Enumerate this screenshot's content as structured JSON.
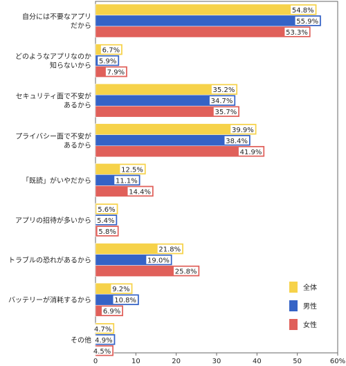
{
  "chart_data": {
    "type": "bar",
    "orientation": "horizontal",
    "categories": [
      [
        "自分には不要なアプリ",
        "だから"
      ],
      [
        "どのようなアプリなのか",
        "知らないから"
      ],
      [
        "セキュリティ面で不安が",
        "あるから"
      ],
      [
        "プライバシー面で不安が",
        "あるから"
      ],
      [
        "「既読」がいやだから"
      ],
      [
        "アプリの招待が多いから"
      ],
      [
        "トラブルの恐れがあるから"
      ],
      [
        "バッテリーが消耗するから"
      ],
      [
        "その他"
      ]
    ],
    "series": [
      {
        "name": "全体",
        "color": "#f6d24a",
        "values": [
          54.8,
          6.7,
          35.2,
          39.9,
          12.5,
          5.6,
          21.8,
          9.2,
          4.7
        ]
      },
      {
        "name": "男性",
        "color": "#3563c6",
        "values": [
          55.9,
          5.9,
          34.7,
          38.4,
          11.1,
          5.4,
          19.0,
          10.8,
          4.9
        ]
      },
      {
        "name": "女性",
        "color": "#e0605a",
        "values": [
          53.3,
          7.9,
          35.7,
          41.9,
          14.4,
          5.8,
          25.8,
          6.9,
          4.5
        ]
      }
    ],
    "value_labels": [
      [
        "54.8%",
        "6.7%",
        "35.2%",
        "39.9%",
        "12.5%",
        "5.6%",
        "21.8%",
        "9.2%",
        "4.7%"
      ],
      [
        "55.9%",
        "5.9%",
        "34.7%",
        "38.4%",
        "11.1%",
        "5.4%",
        "19.0%",
        "10.8%",
        "4.9%"
      ],
      [
        "53.3%",
        "7.9%",
        "35.7%",
        "41.9%",
        "14.4%",
        "5.8%",
        "25.8%",
        "6.9%",
        "4.5%"
      ]
    ],
    "xlim": [
      0,
      60
    ],
    "xticks": [
      0,
      10,
      20,
      30,
      40,
      50,
      60
    ],
    "xtick_labels": [
      "0",
      "10",
      "20",
      "30",
      "40",
      "50",
      "60%"
    ],
    "grid": false,
    "legend_position": "bottom-right",
    "title": "",
    "xlabel": "",
    "ylabel": ""
  }
}
